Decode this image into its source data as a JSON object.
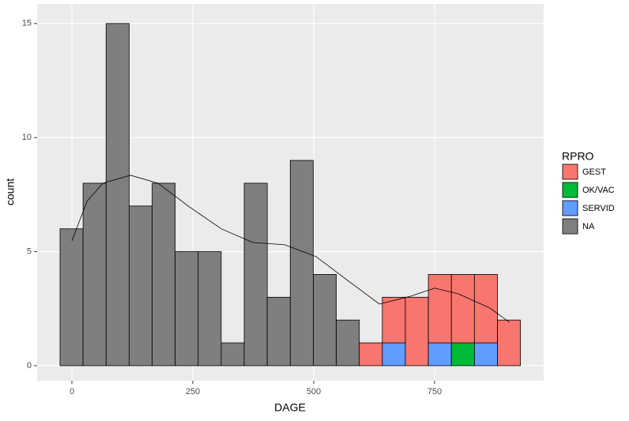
{
  "chart_data": {
    "type": "histogram",
    "x_label": "DAGE",
    "y_label": "count",
    "legend_title": "RPRO",
    "bins": [
      -24.5,
      23.1,
      70.7,
      118.3,
      165.9,
      213.5,
      261.1,
      308.7,
      356.3,
      403.9,
      451.5,
      499.1,
      546.7,
      594.3,
      641.9,
      689.5,
      737.1,
      784.7,
      832.3,
      879.9,
      927.5
    ],
    "series": [
      {
        "name": "GEST",
        "color": "#F8766D",
        "values": [
          0,
          0,
          0,
          0,
          0,
          0,
          0,
          0,
          0,
          0,
          0,
          0,
          0,
          1,
          2,
          3,
          3,
          3,
          3,
          2
        ]
      },
      {
        "name": "OK/VAC",
        "color": "#00BA38",
        "values": [
          0,
          0,
          0,
          0,
          0,
          0,
          0,
          0,
          0,
          0,
          0,
          0,
          0,
          0,
          0,
          0,
          0,
          1,
          0,
          0
        ]
      },
      {
        "name": "SERVID",
        "color": "#619CFF",
        "values": [
          0,
          0,
          0,
          0,
          0,
          0,
          0,
          0,
          0,
          0,
          0,
          0,
          0,
          0,
          1,
          0,
          1,
          0,
          1,
          0
        ]
      },
      {
        "name": "NA",
        "color": "#7F7F7F",
        "values": [
          6,
          8,
          15,
          7,
          8,
          5,
          5,
          1,
          8,
          3,
          9,
          4,
          2,
          0,
          0,
          0,
          0,
          0,
          0,
          0
        ]
      }
    ],
    "density": {
      "x": [
        0,
        31,
        64,
        121,
        178,
        243,
        309,
        374,
        440,
        505,
        570,
        636,
        701,
        750,
        799,
        864,
        905
      ],
      "y": [
        5.47,
        7.2,
        8.0,
        8.35,
        8.0,
        6.96,
        6.0,
        5.4,
        5.3,
        4.78,
        3.74,
        2.7,
        3.05,
        3.4,
        3.15,
        2.53,
        1.9
      ]
    },
    "xlim": [
      -71.9,
      975.5
    ],
    "ylim": [
      -0.66,
      15.86
    ],
    "xticks": [
      0,
      250,
      500,
      750
    ],
    "yticks": [
      0,
      5,
      10,
      15
    ],
    "grid": true
  }
}
